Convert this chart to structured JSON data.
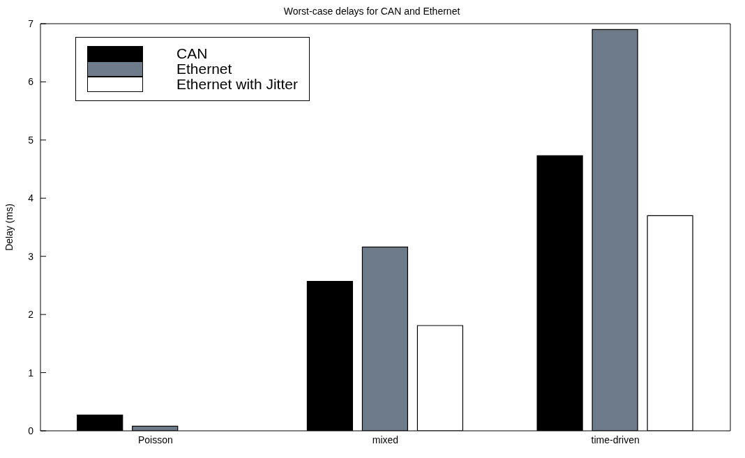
{
  "chart_data": {
    "type": "bar",
    "title": "Worst-case delays for CAN and Ethernet",
    "ylabel": "Delay (ms)",
    "categories": [
      "Poisson",
      "mixed",
      "time-driven"
    ],
    "series": [
      {
        "name": "CAN",
        "color": "#000000",
        "values": [
          0.27,
          2.57,
          4.73
        ]
      },
      {
        "name": "Ethernet",
        "color": "#6e7b8b",
        "values": [
          0.08,
          3.16,
          6.9
        ]
      },
      {
        "name": "Ethernet with Jitter",
        "color": "#ffffff",
        "values": [
          0,
          1.81,
          3.7
        ]
      }
    ],
    "ylim": [
      0,
      7
    ],
    "yticks": [
      0,
      1,
      2,
      3,
      4,
      5,
      6,
      7
    ],
    "grid": false,
    "legend": "top left"
  }
}
